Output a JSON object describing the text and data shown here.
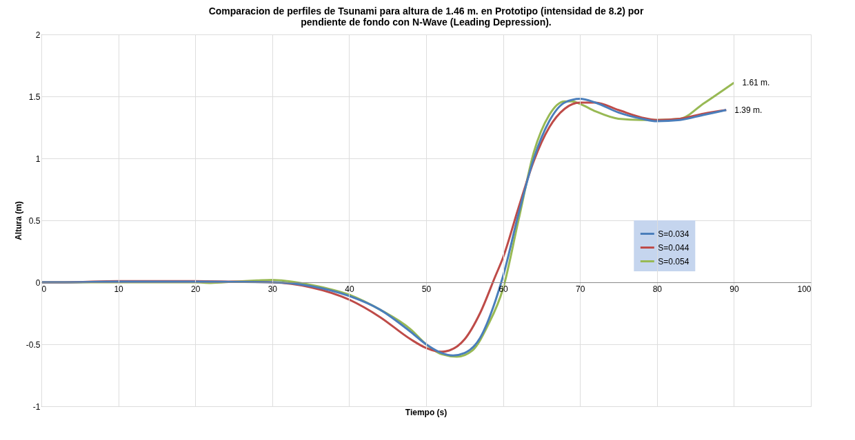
{
  "chart_data": {
    "type": "line",
    "title": "Comparacion de perfiles de Tsunami para altura de 1.46 m. en Prototipo (intensidad de 8.2) por pendiente de fondo con N-Wave (Leading Depression).",
    "xlabel": "Tiempo (s)",
    "ylabel": "Altura (m)",
    "xlim": [
      0,
      100
    ],
    "xticks": [
      0,
      10,
      20,
      30,
      40,
      50,
      60,
      70,
      80,
      90,
      100
    ],
    "ylim": [
      -1,
      2
    ],
    "yticks": [
      -1,
      -0.5,
      0,
      0.5,
      1,
      1.5,
      2
    ],
    "grid": true,
    "legend": "right",
    "marker": "none",
    "line_style": "solid",
    "series": [
      {
        "name": "S=0.034",
        "color": "#4a7ebb",
        "x": [
          0,
          3,
          10,
          20,
          25,
          30,
          35,
          40,
          44,
          48,
          50,
          52,
          53.5,
          55,
          57,
          59,
          60,
          62,
          64,
          66,
          68,
          70,
          72,
          75,
          78,
          80,
          83,
          86,
          89
        ],
        "values": [
          0,
          0,
          0.005,
          0.005,
          0.003,
          0,
          -0.03,
          -0.11,
          -0.22,
          -0.4,
          -0.5,
          -0.57,
          -0.59,
          -0.57,
          -0.45,
          -0.15,
          0.05,
          0.55,
          1.0,
          1.3,
          1.45,
          1.48,
          1.45,
          1.37,
          1.32,
          1.3,
          1.31,
          1.35,
          1.39
        ]
      },
      {
        "name": "S=0.044",
        "color": "#be4b48",
        "x": [
          0,
          3,
          10,
          20,
          25,
          30,
          35,
          40,
          44,
          48,
          50,
          52,
          53,
          55,
          57,
          59,
          60,
          62,
          64,
          66,
          68,
          70,
          72,
          75,
          78,
          80,
          83,
          86,
          89
        ],
        "values": [
          0,
          0,
          0.01,
          0.01,
          0.005,
          0,
          -0.04,
          -0.14,
          -0.28,
          -0.46,
          -0.53,
          -0.56,
          -0.55,
          -0.46,
          -0.25,
          0.05,
          0.2,
          0.6,
          0.98,
          1.25,
          1.4,
          1.45,
          1.45,
          1.39,
          1.33,
          1.31,
          1.32,
          1.36,
          1.39
        ]
      },
      {
        "name": "S=0.054",
        "color": "#98b954",
        "x": [
          0,
          3,
          10,
          20,
          22,
          25,
          28,
          30,
          32,
          35,
          40,
          44,
          48,
          50,
          52,
          54,
          56,
          58,
          60,
          62,
          64,
          66,
          68,
          69,
          70,
          72,
          75,
          78,
          80,
          83,
          86,
          90
        ],
        "values": [
          0,
          0,
          0,
          0,
          -0.005,
          0.005,
          0.015,
          0.02,
          0.01,
          -0.02,
          -0.1,
          -0.22,
          -0.38,
          -0.5,
          -0.58,
          -0.6,
          -0.55,
          -0.35,
          -0.05,
          0.5,
          1.05,
          1.35,
          1.46,
          1.46,
          1.44,
          1.38,
          1.32,
          1.31,
          1.31,
          1.32,
          1.44,
          1.61
        ]
      }
    ],
    "annotations": [
      {
        "text": "1.61 m.",
        "x": 90,
        "y": 1.61
      },
      {
        "text": "1.39 m.",
        "x": 89,
        "y": 1.39
      }
    ]
  }
}
